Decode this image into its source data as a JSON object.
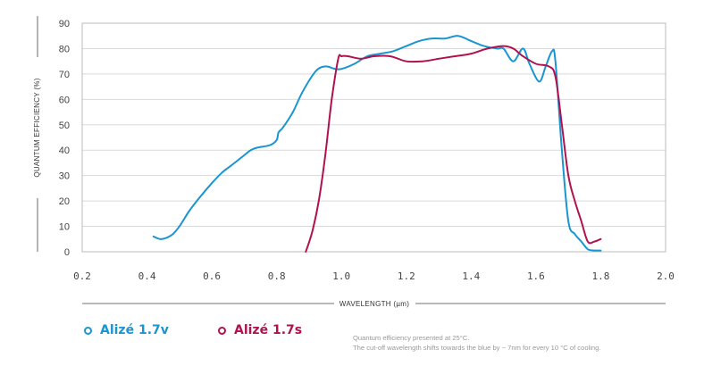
{
  "chart_data": {
    "type": "line",
    "xlabel": "WAVELENGTH (µm)",
    "ylabel": "QUANTUM EFFICIENCY (%)",
    "xlim": [
      0.2,
      2.0
    ],
    "ylim": [
      0,
      90
    ],
    "xticks": [
      "0.2",
      "0.4",
      "0.6",
      "0.8",
      "1.0",
      "1.2",
      "1.4",
      "1.6",
      "1.8",
      "2.0"
    ],
    "yticks": [
      "0",
      "10",
      "20",
      "30",
      "40",
      "50",
      "60",
      "70",
      "80",
      "90"
    ],
    "grid": true,
    "series": [
      {
        "name": "Alizé 1.7v",
        "color": "#1a95d1",
        "x": [
          0.42,
          0.44,
          0.46,
          0.48,
          0.5,
          0.53,
          0.56,
          0.6,
          0.63,
          0.66,
          0.7,
          0.72,
          0.74,
          0.78,
          0.8,
          0.806,
          0.82,
          0.85,
          0.88,
          0.92,
          0.95,
          0.98,
          1.0,
          1.04,
          1.08,
          1.12,
          1.16,
          1.2,
          1.24,
          1.28,
          1.32,
          1.36,
          1.4,
          1.44,
          1.48,
          1.5,
          1.53,
          1.56,
          1.58,
          1.61,
          1.63,
          1.65,
          1.66,
          1.68,
          1.7,
          1.72,
          1.74,
          1.76,
          1.78,
          1.8
        ],
        "y": [
          6,
          5,
          5.5,
          7,
          10,
          16,
          21,
          27,
          31,
          34,
          38,
          40,
          41,
          42,
          44,
          47,
          49,
          55,
          63,
          71,
          73,
          72,
          72,
          74,
          77,
          78,
          79,
          81,
          83,
          84,
          84,
          85,
          83,
          81,
          80,
          80,
          75,
          80,
          74,
          67,
          73,
          79,
          75,
          40,
          12,
          7,
          4,
          1,
          0.5,
          0.5
        ]
      },
      {
        "name": "Alizé 1.7s",
        "color": "#b0124d",
        "x": [
          0.89,
          0.91,
          0.93,
          0.95,
          0.97,
          0.99,
          1.0,
          1.02,
          1.06,
          1.1,
          1.15,
          1.2,
          1.25,
          1.3,
          1.35,
          1.4,
          1.45,
          1.5,
          1.53,
          1.56,
          1.6,
          1.64,
          1.66,
          1.68,
          1.7,
          1.72,
          1.74,
          1.76,
          1.78,
          1.8
        ],
        "y": [
          0,
          8,
          20,
          38,
          60,
          76,
          77,
          77,
          76,
          77,
          77,
          75,
          75,
          76,
          77,
          78,
          80,
          81,
          80,
          77,
          74,
          73,
          69,
          50,
          30,
          20,
          12,
          4,
          4,
          5
        ]
      }
    ]
  },
  "note": {
    "line1": "Quantum efficiency presented at 25°C.",
    "line2": "The cut-off wavelength shifts towards the blue by ~ 7nm for every 10 °C of cooling."
  }
}
